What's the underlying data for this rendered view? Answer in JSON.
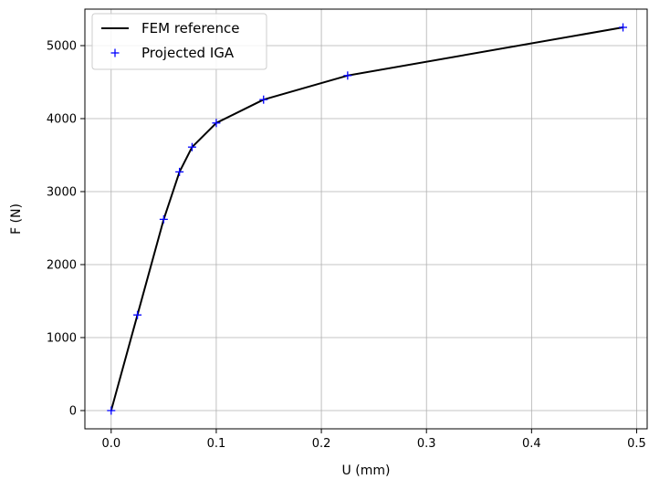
{
  "chart_data": {
    "type": "line",
    "xlabel": "U (mm)",
    "ylabel": "F (N)",
    "xlim": [
      -0.025,
      0.51
    ],
    "ylim": [
      -250,
      5500
    ],
    "xticks": [
      "0.0",
      "0.1",
      "0.2",
      "0.3",
      "0.4",
      "0.5"
    ],
    "yticks": [
      "0",
      "1000",
      "2000",
      "3000",
      "4000",
      "5000"
    ],
    "grid": true,
    "legend_position": "top-left",
    "series": [
      {
        "name": "FEM reference",
        "style": "line",
        "color": "#000000",
        "x": [
          0.0,
          0.025,
          0.05,
          0.065,
          0.077,
          0.1,
          0.145,
          0.225,
          0.487
        ],
        "y": [
          0,
          1310,
          2620,
          3270,
          3610,
          3940,
          4260,
          4590,
          5250
        ]
      },
      {
        "name": "Projected IGA",
        "style": "marker",
        "marker": "+",
        "color": "#0000ff",
        "x": [
          0.0,
          0.025,
          0.05,
          0.065,
          0.077,
          0.1,
          0.145,
          0.225,
          0.487
        ],
        "y": [
          0,
          1310,
          2620,
          3270,
          3610,
          3940,
          4260,
          4590,
          5250
        ]
      }
    ]
  }
}
